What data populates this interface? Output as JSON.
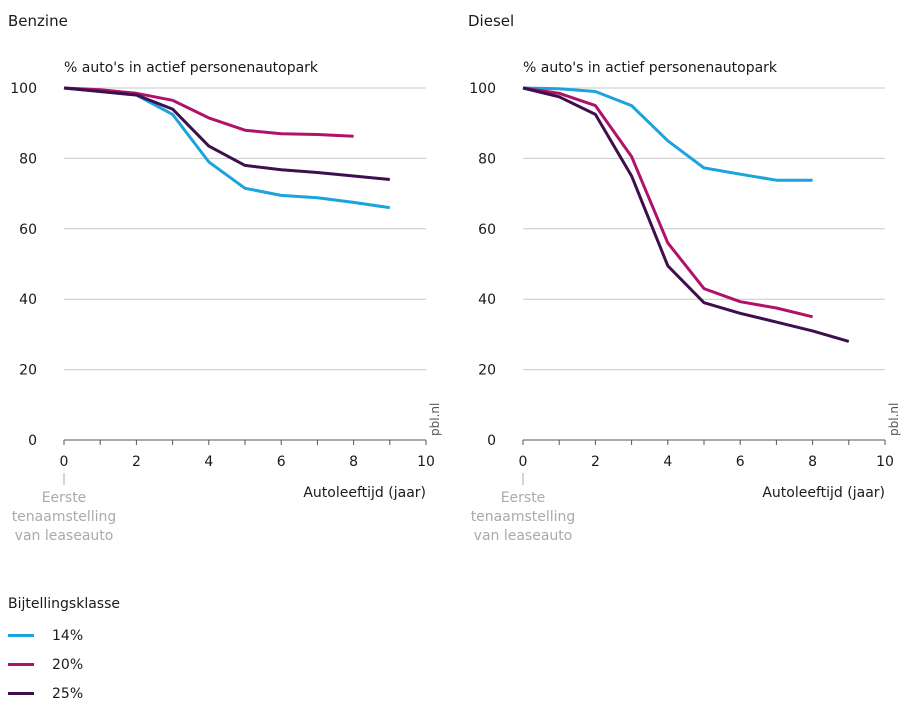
{
  "legend": {
    "title": "Bijtellingsklasse",
    "items": [
      {
        "label": "14%",
        "color": "#1aa3dd"
      },
      {
        "label": "20%",
        "color": "#b0126a"
      },
      {
        "label": "25%",
        "color": "#3d0f4e"
      }
    ]
  },
  "chart_data": [
    {
      "type": "line",
      "title": "Benzine",
      "ylabel": "% auto's in actief personenautopark",
      "xlabel": "Autoleeftijd (jaar)",
      "xlim": [
        0,
        10
      ],
      "ylim": [
        0,
        100
      ],
      "xticks": [
        0,
        2,
        4,
        6,
        8,
        10
      ],
      "yticks": [
        0,
        20,
        40,
        60,
        80,
        100
      ],
      "grid": true,
      "source": "pbl.nl",
      "annotation": {
        "x": 0,
        "lines": [
          "Eerste",
          "tenaamstelling",
          "van leaseauto"
        ]
      },
      "series": [
        {
          "name": "14%",
          "color": "#1aa3dd",
          "x": [
            0,
            1,
            2,
            3,
            4,
            5,
            6,
            7,
            8,
            9
          ],
          "y": [
            100,
            99,
            98,
            92.5,
            79,
            71.5,
            69.5,
            68.8,
            67.5,
            66
          ]
        },
        {
          "name": "20%",
          "color": "#b0126a",
          "x": [
            0,
            1,
            2,
            3,
            4,
            5,
            6,
            7,
            8
          ],
          "y": [
            100,
            99.5,
            98.5,
            96.5,
            91.5,
            88,
            87,
            86.8,
            86.3
          ]
        },
        {
          "name": "25%",
          "color": "#3d0f4e",
          "x": [
            0,
            1,
            2,
            3,
            4,
            5,
            6,
            7,
            8,
            9
          ],
          "y": [
            100,
            99,
            98,
            94,
            83.5,
            78,
            76.8,
            76,
            75,
            74
          ]
        }
      ]
    },
    {
      "type": "line",
      "title": "Diesel",
      "ylabel": "% auto's in actief personenautopark",
      "xlabel": "Autoleeftijd (jaar)",
      "xlim": [
        0,
        10
      ],
      "ylim": [
        0,
        100
      ],
      "xticks": [
        0,
        2,
        4,
        6,
        8,
        10
      ],
      "yticks": [
        0,
        20,
        40,
        60,
        80,
        100
      ],
      "grid": true,
      "source": "pbl.nl",
      "annotation": {
        "x": 0,
        "lines": [
          "Eerste",
          "tenaamstelling",
          "van leaseauto"
        ]
      },
      "series": [
        {
          "name": "14%",
          "color": "#1aa3dd",
          "x": [
            0,
            1,
            2,
            3,
            4,
            5,
            6,
            7,
            8
          ],
          "y": [
            100,
            99.8,
            99,
            95,
            85,
            77.3,
            75.5,
            73.8,
            73.8
          ]
        },
        {
          "name": "20%",
          "color": "#b0126a",
          "x": [
            0,
            1,
            2,
            3,
            4,
            5,
            6,
            7,
            8
          ],
          "y": [
            100,
            98.5,
            95,
            80.5,
            56,
            43,
            39.3,
            37.5,
            35
          ]
        },
        {
          "name": "25%",
          "color": "#3d0f4e",
          "x": [
            0,
            1,
            2,
            3,
            4,
            5,
            6,
            7,
            8,
            9
          ],
          "y": [
            100,
            97.5,
            92.5,
            75,
            49.5,
            39,
            36,
            33.5,
            31,
            28
          ]
        }
      ]
    }
  ]
}
